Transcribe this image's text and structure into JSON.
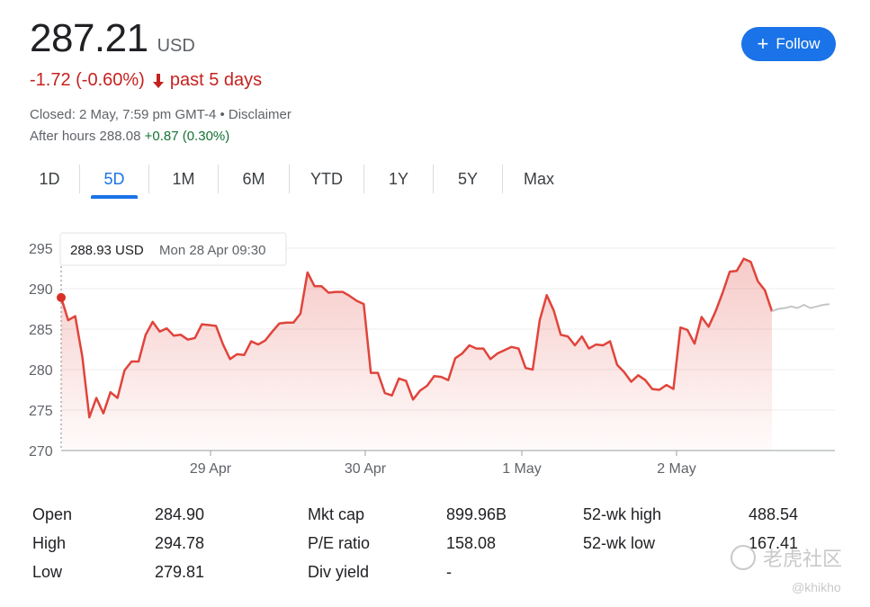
{
  "quote": {
    "price": "287.21",
    "currency": "USD",
    "change": "-1.72 (-0.60%)",
    "period": "past 5 days",
    "closed_info": "Closed: 2 May, 7:59 pm GMT-4 • Disclaimer",
    "after_hours_label": "After hours 288.08",
    "after_hours_change": "+0.87 (0.30%)"
  },
  "follow_button": {
    "label": "Follow"
  },
  "tabs": [
    {
      "label": "1D",
      "active": false
    },
    {
      "label": "5D",
      "active": true
    },
    {
      "label": "1M",
      "active": false
    },
    {
      "label": "6M",
      "active": false
    },
    {
      "label": "YTD",
      "active": false
    },
    {
      "label": "1Y",
      "active": false
    },
    {
      "label": "5Y",
      "active": false
    },
    {
      "label": "Max",
      "active": false
    }
  ],
  "tooltip": {
    "price": "288.93 USD",
    "time": "Mon 28 Apr 09:30"
  },
  "colors": {
    "accent": "#1a73e8",
    "down": "#c5221f",
    "up": "#137333",
    "line": "#e0443b"
  },
  "stats": [
    {
      "label": "Open",
      "value": "284.90"
    },
    {
      "label": "High",
      "value": "294.78"
    },
    {
      "label": "Low",
      "value": "279.81"
    },
    {
      "label": "Mkt cap",
      "value": "899.96B"
    },
    {
      "label": "P/E ratio",
      "value": "158.08"
    },
    {
      "label": "Div yield",
      "value": "-"
    },
    {
      "label": "52-wk high",
      "value": "488.54"
    },
    {
      "label": "52-wk low",
      "value": "167.41"
    }
  ],
  "watermark": {
    "text": "老虎社区",
    "handle": "@khikho"
  },
  "chart_data": {
    "type": "line",
    "ylim": [
      270,
      295
    ],
    "yticks": [
      270,
      275,
      280,
      285,
      290,
      295
    ],
    "x_labels": [
      "29 Apr",
      "30 Apr",
      "1 May",
      "2 May"
    ],
    "grid": true,
    "series": [
      {
        "values": [
          288.9,
          286.1,
          286.6,
          281.6,
          274.1,
          276.5,
          274.6,
          277.2,
          276.5,
          279.9,
          281.0,
          281.0,
          284.3,
          285.9,
          284.7,
          285.1,
          284.2,
          284.3,
          283.7,
          283.9,
          285.6,
          285.5,
          285.4,
          283.1,
          281.3,
          281.9,
          281.8,
          283.5,
          283.1,
          283.6,
          284.7,
          285.7,
          285.8,
          285.8,
          286.9,
          292.0,
          290.3,
          290.3,
          289.5,
          289.6,
          289.6,
          289.1,
          288.5,
          288.1,
          279.6,
          279.6,
          277.1,
          276.8,
          278.9,
          278.6,
          276.3,
          277.4,
          278.0,
          279.2,
          279.1,
          278.7,
          281.4,
          282.0,
          283.0,
          282.6,
          282.6,
          281.3,
          282.0,
          282.4,
          282.8,
          282.6,
          280.2,
          280.0,
          286.1,
          289.2,
          287.3,
          284.3,
          284.1,
          283.0,
          284.1,
          282.6,
          283.1,
          283.0,
          283.5,
          280.6,
          279.7,
          278.5,
          279.3,
          278.7,
          277.6,
          277.5,
          278.1,
          277.6,
          285.2,
          284.9,
          283.2,
          286.5,
          285.3,
          287.2,
          289.5,
          292.1,
          292.2,
          293.7,
          293.3,
          290.9,
          289.8,
          287.2
        ],
        "after_hours": [
          287.21,
          287.5,
          287.6,
          287.8,
          287.6,
          288.0,
          287.6,
          287.8,
          288.0,
          288.08
        ]
      }
    ]
  }
}
